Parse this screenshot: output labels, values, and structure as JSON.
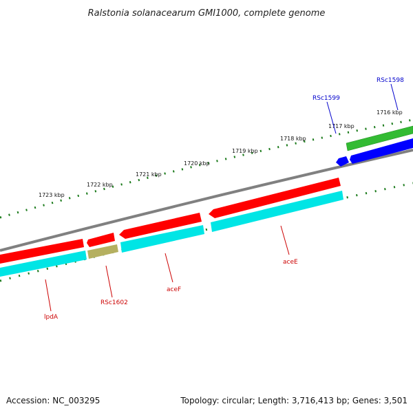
{
  "title": "Ralstonia solanacearum GMI1000, complete genome",
  "footer": {
    "accession": "Accession: NC_003295",
    "summary": "Topology: circular; Length: 3,716,413 bp; Genes: 3,501"
  },
  "scale_labels": [
    "1716 kbp",
    "1717 kbp",
    "1718 kbp",
    "1719 kbp",
    "1720 kbp",
    "1721 kbp",
    "1722 kbp",
    "1723 kbp"
  ],
  "genes": [
    {
      "name": "RSc1598",
      "strand": "reverse",
      "color": "#0000cc"
    },
    {
      "name": "RSc1599",
      "strand": "reverse",
      "color": "#0000cc"
    },
    {
      "name": "aceE",
      "strand": "forward",
      "color": "#cc0000"
    },
    {
      "name": "aceF",
      "strand": "forward",
      "color": "#cc0000"
    },
    {
      "name": "RSc1602",
      "strand": "forward",
      "color": "#cc0000"
    },
    {
      "name": "lpdA",
      "strand": "forward",
      "color": "#cc0000"
    }
  ],
  "colors": {
    "backbone": "#808080",
    "tick": "#1a7a1a",
    "cds_forward": "#ff0000",
    "cds_reverse": "#0000ff",
    "gene_reverse": "#33bb33",
    "gene_forward": "#00e5e5",
    "other": "#b5b060"
  }
}
